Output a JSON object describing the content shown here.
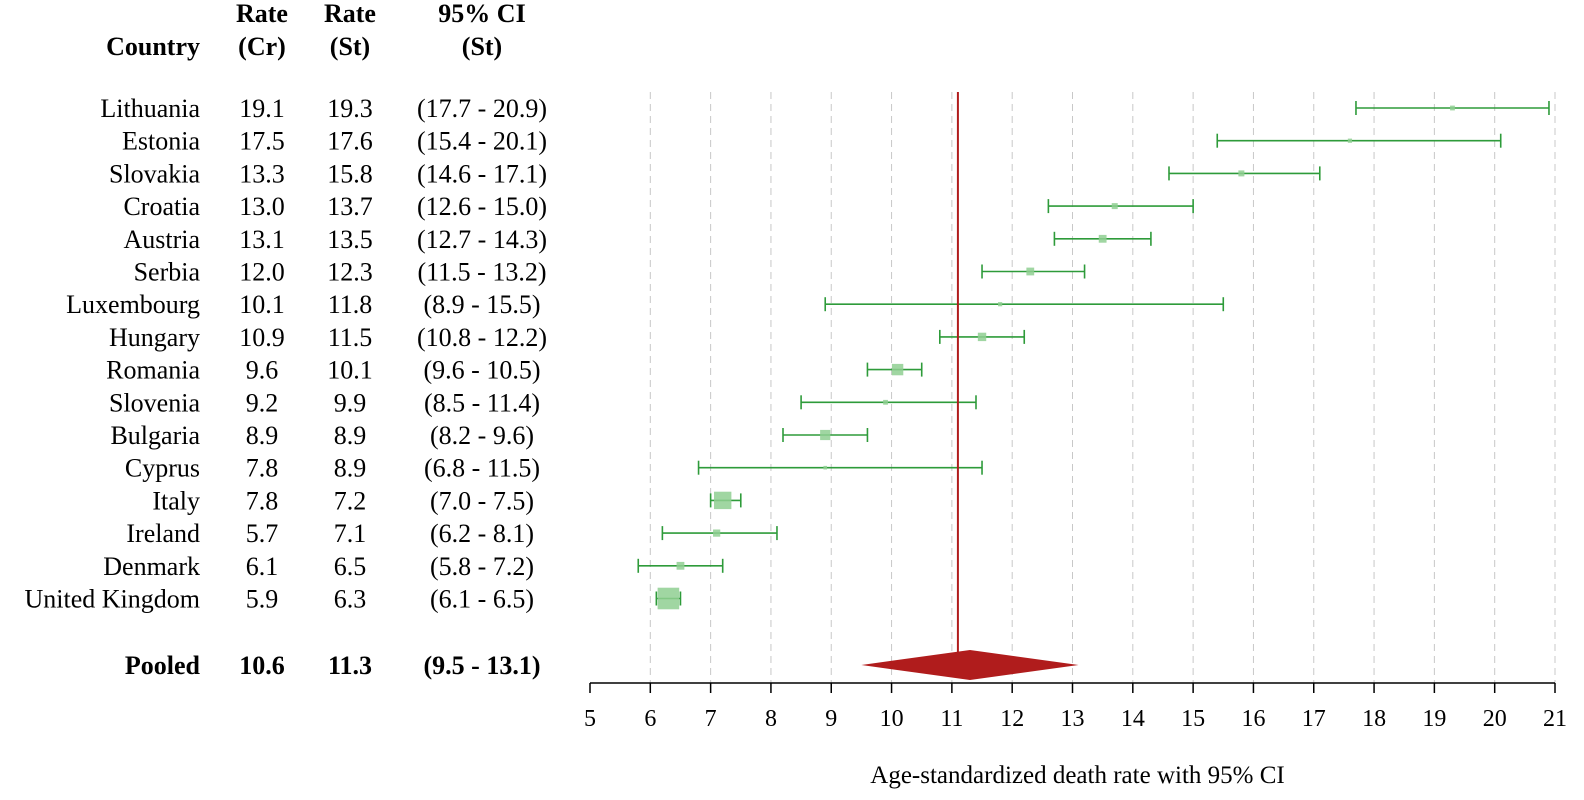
{
  "headers": {
    "country": "Country",
    "rate_cr_line1": "Rate",
    "rate_cr_line2": "(Cr)",
    "rate_st_line1": "Rate",
    "rate_st_line2": "(St)",
    "ci_line1": "95% CI",
    "ci_line2": "(St)"
  },
  "colors": {
    "ci": "#2e9b3a",
    "box": "#8fcf92",
    "pooled": "#b01c1c",
    "grid": "#c8c8c8",
    "axis": "#000000"
  },
  "chart_data": {
    "type": "forest",
    "xlabel": "Age-standardized death rate with 95% CI",
    "xlim": [
      5,
      21
    ],
    "xticks": [
      "5",
      "6",
      "7",
      "8",
      "9",
      "10",
      "11",
      "12",
      "13",
      "14",
      "15",
      "16",
      "17",
      "18",
      "19",
      "20",
      "21"
    ],
    "grid": true,
    "rows": [
      {
        "country": "Lithuania",
        "rate_cr": "19.1",
        "rate_st": "19.3",
        "ci_text": "(17.7 - 20.9)",
        "est": 19.3,
        "lo": 17.7,
        "hi": 20.9,
        "weight": 0.8
      },
      {
        "country": "Estonia",
        "rate_cr": "17.5",
        "rate_st": "17.6",
        "ci_text": "(15.4 - 20.1)",
        "est": 17.6,
        "lo": 15.4,
        "hi": 20.1,
        "weight": 0.7
      },
      {
        "country": "Slovakia",
        "rate_cr": "13.3",
        "rate_st": "15.8",
        "ci_text": "(14.6 - 17.1)",
        "est": 15.8,
        "lo": 14.6,
        "hi": 17.1,
        "weight": 1.0
      },
      {
        "country": "Croatia",
        "rate_cr": "13.0",
        "rate_st": "13.7",
        "ci_text": "(12.6 - 15.0)",
        "est": 13.7,
        "lo": 12.6,
        "hi": 15.0,
        "weight": 1.0
      },
      {
        "country": "Austria",
        "rate_cr": "13.1",
        "rate_st": "13.5",
        "ci_text": "(12.7 - 14.3)",
        "est": 13.5,
        "lo": 12.7,
        "hi": 14.3,
        "weight": 1.3
      },
      {
        "country": "Serbia",
        "rate_cr": "12.0",
        "rate_st": "12.3",
        "ci_text": "(11.5 - 13.2)",
        "est": 12.3,
        "lo": 11.5,
        "hi": 13.2,
        "weight": 1.3
      },
      {
        "country": "Luxembourg",
        "rate_cr": "10.1",
        "rate_st": "11.8",
        "ci_text": "(8.9 - 15.5)",
        "est": 11.8,
        "lo": 8.9,
        "hi": 15.5,
        "weight": 0.7
      },
      {
        "country": "Hungary",
        "rate_cr": "10.9",
        "rate_st": "11.5",
        "ci_text": "(10.8 - 12.2)",
        "est": 11.5,
        "lo": 10.8,
        "hi": 12.2,
        "weight": 1.4
      },
      {
        "country": "Romania",
        "rate_cr": "9.6",
        "rate_st": "10.1",
        "ci_text": "(9.6 - 10.5)",
        "est": 10.1,
        "lo": 9.6,
        "hi": 10.5,
        "weight": 1.9
      },
      {
        "country": "Slovenia",
        "rate_cr": "9.2",
        "rate_st": "9.9",
        "ci_text": "(8.5 - 11.4)",
        "est": 9.9,
        "lo": 8.5,
        "hi": 11.4,
        "weight": 0.8
      },
      {
        "country": "Bulgaria",
        "rate_cr": "8.9",
        "rate_st": "8.9",
        "ci_text": "(8.2 - 9.6)",
        "est": 8.9,
        "lo": 8.2,
        "hi": 9.6,
        "weight": 1.7
      },
      {
        "country": "Cyprus",
        "rate_cr": "7.8",
        "rate_st": "8.9",
        "ci_text": "(6.8 - 11.5)",
        "est": 8.9,
        "lo": 6.8,
        "hi": 11.5,
        "weight": 0.6
      },
      {
        "country": "Italy",
        "rate_cr": "7.8",
        "rate_st": "7.2",
        "ci_text": "(7.0 - 7.5)",
        "est": 7.2,
        "lo": 7.0,
        "hi": 7.5,
        "weight": 2.9
      },
      {
        "country": "Ireland",
        "rate_cr": "5.7",
        "rate_st": "7.1",
        "ci_text": "(6.2 - 8.1)",
        "est": 7.1,
        "lo": 6.2,
        "hi": 8.1,
        "weight": 1.2
      },
      {
        "country": "Denmark",
        "rate_cr": "6.1",
        "rate_st": "6.5",
        "ci_text": "(5.8 - 7.2)",
        "est": 6.5,
        "lo": 5.8,
        "hi": 7.2,
        "weight": 1.3
      },
      {
        "country": "United Kingdom",
        "rate_cr": "5.9",
        "rate_st": "6.3",
        "ci_text": "(6.1 - 6.5)",
        "est": 6.3,
        "lo": 6.1,
        "hi": 6.5,
        "weight": 3.6
      }
    ],
    "pooled": {
      "label": "Pooled",
      "rate_cr": "10.6",
      "rate_st": "11.3",
      "ci_text": "(9.5 - 13.1)",
      "est": 11.3,
      "lo": 9.5,
      "hi": 13.1
    },
    "reference_line": 11.1
  }
}
